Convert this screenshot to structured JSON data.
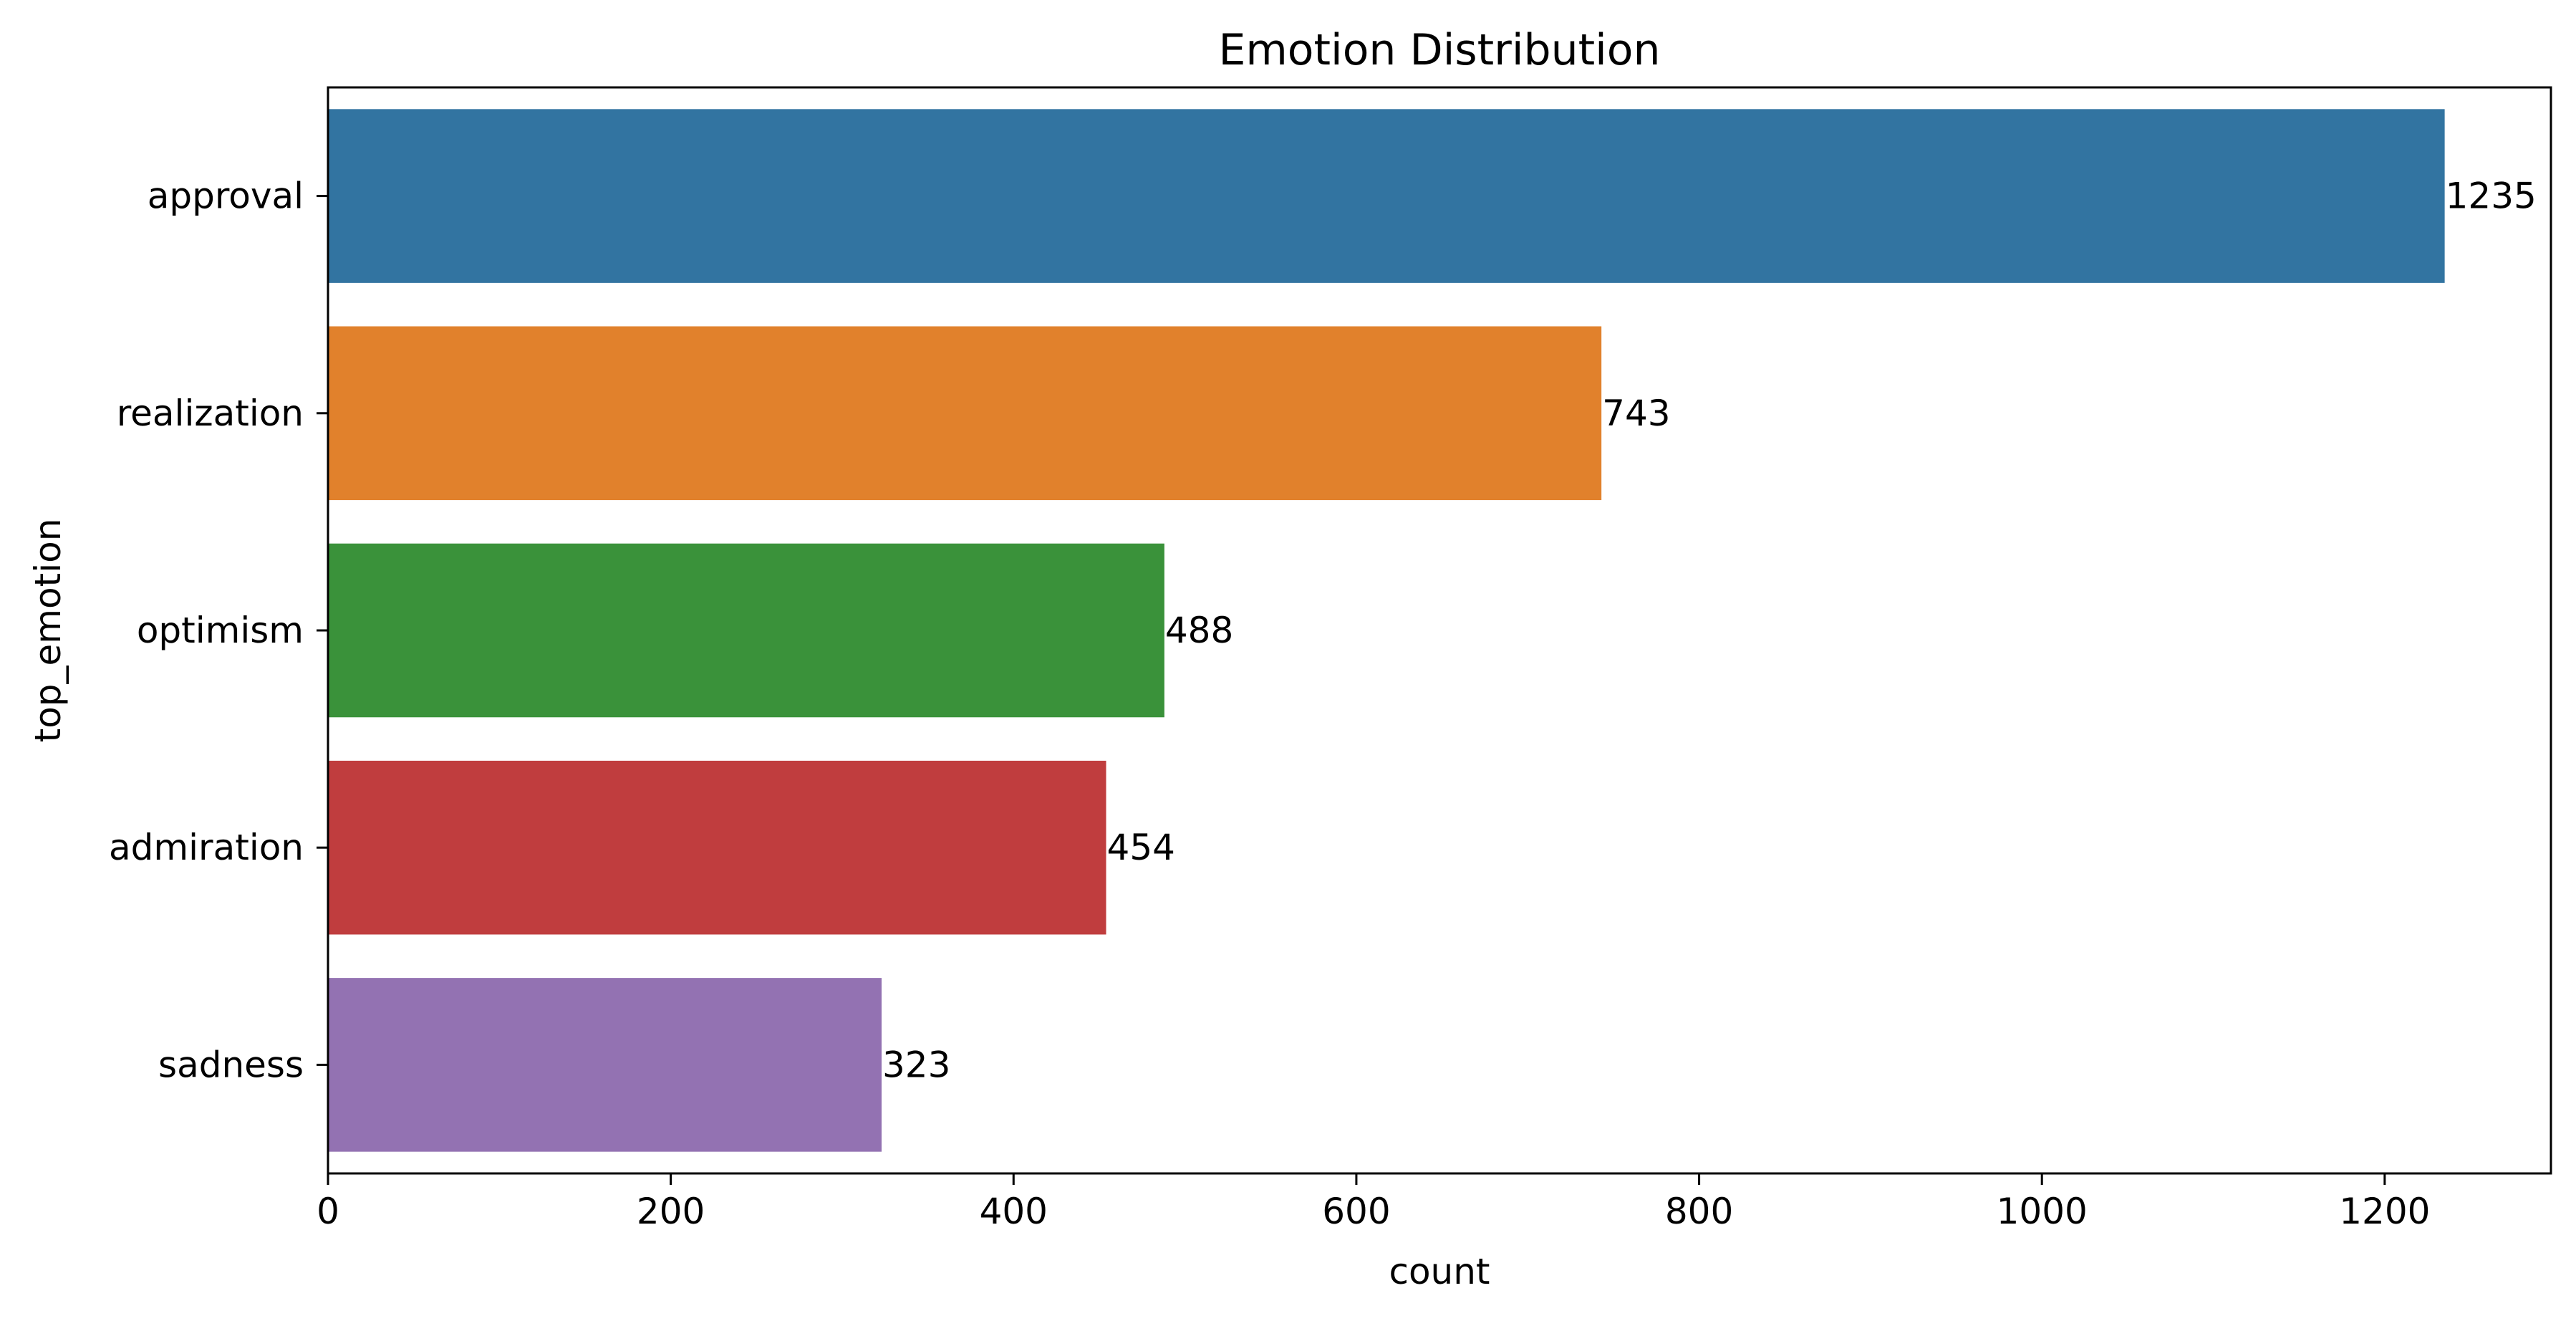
{
  "chart_data": {
    "type": "bar",
    "orientation": "horizontal",
    "title": "Emotion Distribution",
    "xlabel": "count",
    "ylabel": "top_emotion",
    "categories": [
      "approval",
      "realization",
      "optimism",
      "admiration",
      "sadness"
    ],
    "values": [
      1235,
      743,
      488,
      454,
      323
    ],
    "data_labels": [
      "1235",
      "743",
      "488",
      "454",
      "323"
    ],
    "colors": [
      "#3274a1",
      "#e1812c",
      "#3a923a",
      "#c03d3e",
      "#9372b2"
    ],
    "xlim": [
      0,
      1297
    ],
    "xticks": [
      0,
      200,
      400,
      600,
      800,
      1000,
      1200
    ],
    "xtick_labels": [
      "0",
      "200",
      "400",
      "600",
      "800",
      "1000",
      "1200"
    ],
    "grid": false,
    "legend": "none"
  }
}
